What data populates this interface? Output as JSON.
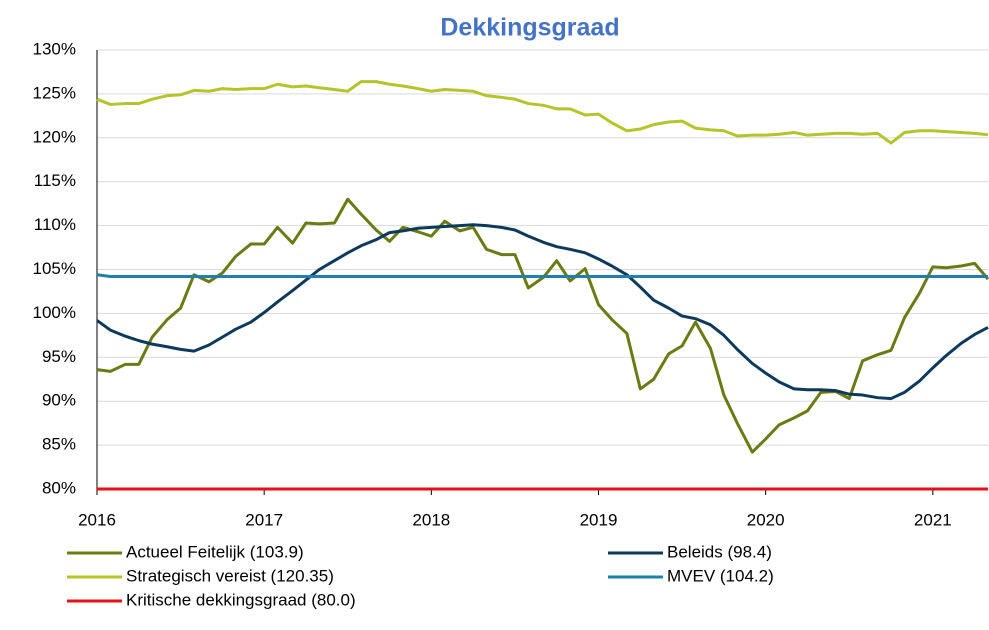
{
  "chart_data": {
    "type": "line",
    "title": "Dekkingsgraad",
    "x": [
      2016,
      2016.08,
      2016.17,
      2016.25,
      2016.33,
      2016.42,
      2016.5,
      2016.58,
      2016.67,
      2016.75,
      2016.83,
      2016.92,
      2017,
      2017.08,
      2017.17,
      2017.25,
      2017.33,
      2017.42,
      2017.5,
      2017.58,
      2017.67,
      2017.75,
      2017.83,
      2017.92,
      2018,
      2018.08,
      2018.17,
      2018.25,
      2018.33,
      2018.42,
      2018.5,
      2018.58,
      2018.67,
      2018.75,
      2018.83,
      2018.92,
      2019,
      2019.08,
      2019.17,
      2019.25,
      2019.33,
      2019.42,
      2019.5,
      2019.58,
      2019.67,
      2019.75,
      2019.83,
      2019.92,
      2020,
      2020.08,
      2020.17,
      2020.25,
      2020.33,
      2020.42,
      2020.5,
      2020.58,
      2020.67,
      2020.75,
      2020.83,
      2020.92,
      2021,
      2021.08,
      2021.17,
      2021.25,
      2021.33
    ],
    "series": [
      {
        "name": "Actueel Feitelijk (103.9)",
        "color": "#6b7a12",
        "values": [
          93.6,
          93.4,
          94.2,
          94.2,
          97.3,
          99.3,
          100.6,
          104.4,
          103.6,
          104.6,
          106.5,
          107.9,
          107.9,
          109.8,
          108.0,
          110.3,
          110.2,
          110.3,
          113.0,
          111.3,
          109.5,
          108.2,
          109.8,
          109.3,
          108.8,
          110.5,
          109.4,
          109.8,
          107.3,
          106.7,
          106.7,
          102.9,
          104.1,
          106.0,
          103.7,
          105.1,
          101.0,
          99.3,
          97.7,
          91.4,
          92.5,
          95.4,
          96.3,
          99.0,
          96.0,
          90.7,
          87.5,
          84.2,
          85.7,
          87.3,
          88.1,
          88.9,
          91.0,
          91.1,
          90.3,
          94.6,
          95.3,
          95.8,
          99.5,
          102.3,
          105.3,
          105.2,
          105.4,
          105.7,
          103.9
        ]
      },
      {
        "name": "Beleids (98.4)",
        "color": "#0d3a5c",
        "values": [
          99.2,
          98.1,
          97.4,
          96.9,
          96.5,
          96.2,
          95.9,
          95.7,
          96.4,
          97.3,
          98.2,
          99.0,
          100.1,
          101.3,
          102.6,
          103.8,
          105.0,
          106.0,
          106.9,
          107.7,
          108.4,
          109.2,
          109.4,
          109.7,
          109.8,
          109.9,
          110.0,
          110.1,
          110.0,
          109.8,
          109.5,
          108.8,
          108.1,
          107.6,
          107.3,
          106.9,
          106.2,
          105.4,
          104.4,
          103.0,
          101.5,
          100.6,
          99.7,
          99.4,
          98.7,
          97.5,
          95.9,
          94.3,
          93.2,
          92.2,
          91.4,
          91.3,
          91.3,
          91.2,
          90.8,
          90.7,
          90.4,
          90.3,
          91.0,
          92.3,
          93.8,
          95.2,
          96.6,
          97.6,
          98.4
        ]
      },
      {
        "name": "Strategisch vereist (120.35)",
        "color": "#b5c42a",
        "values": [
          124.4,
          123.8,
          123.9,
          123.9,
          124.4,
          124.8,
          124.9,
          125.4,
          125.3,
          125.6,
          125.5,
          125.6,
          125.6,
          126.1,
          125.8,
          125.9,
          125.7,
          125.5,
          125.3,
          126.4,
          126.4,
          126.1,
          125.9,
          125.6,
          125.3,
          125.5,
          125.4,
          125.3,
          124.8,
          124.6,
          124.4,
          123.9,
          123.7,
          123.3,
          123.3,
          122.6,
          122.7,
          121.7,
          120.8,
          121.0,
          121.5,
          121.8,
          121.9,
          121.1,
          120.9,
          120.8,
          120.2,
          120.3,
          120.3,
          120.4,
          120.6,
          120.3,
          120.4,
          120.5,
          120.5,
          120.4,
          120.5,
          119.4,
          120.6,
          120.8,
          120.8,
          120.7,
          120.6,
          120.5,
          120.35
        ]
      },
      {
        "name": "MVEV (104.2)",
        "color": "#1f7fae",
        "values": [
          104.4,
          104.2,
          104.2,
          104.2,
          104.2,
          104.2,
          104.2,
          104.2,
          104.2,
          104.2,
          104.2,
          104.2,
          104.2,
          104.2,
          104.2,
          104.2,
          104.2,
          104.2,
          104.2,
          104.2,
          104.2,
          104.2,
          104.2,
          104.2,
          104.2,
          104.2,
          104.2,
          104.2,
          104.2,
          104.2,
          104.2,
          104.2,
          104.2,
          104.2,
          104.2,
          104.2,
          104.2,
          104.2,
          104.2,
          104.2,
          104.2,
          104.2,
          104.2,
          104.2,
          104.2,
          104.2,
          104.2,
          104.2,
          104.2,
          104.2,
          104.2,
          104.2,
          104.2,
          104.2,
          104.2,
          104.2,
          104.2,
          104.2,
          104.2,
          104.2,
          104.2,
          104.2,
          104.2,
          104.2,
          104.2
        ]
      },
      {
        "name": "Kritische dekkingsgraad (80.0)",
        "color": "#e81010",
        "values": [
          80,
          80,
          80,
          80,
          80,
          80,
          80,
          80,
          80,
          80,
          80,
          80,
          80,
          80,
          80,
          80,
          80,
          80,
          80,
          80,
          80,
          80,
          80,
          80,
          80,
          80,
          80,
          80,
          80,
          80,
          80,
          80,
          80,
          80,
          80,
          80,
          80,
          80,
          80,
          80,
          80,
          80,
          80,
          80,
          80,
          80,
          80,
          80,
          80,
          80,
          80,
          80,
          80,
          80,
          80,
          80,
          80,
          80,
          80,
          80,
          80,
          80,
          80,
          80,
          80
        ]
      }
    ],
    "xlim": [
      2016,
      2021.33
    ],
    "xticks": [
      2016,
      2017,
      2018,
      2019,
      2020,
      2021
    ],
    "ylim": [
      80,
      130
    ],
    "yticks": [
      {
        "value": 80,
        "label": "80%"
      },
      {
        "value": 85,
        "label": "85%"
      },
      {
        "value": 90,
        "label": "90%"
      },
      {
        "value": 95,
        "label": "95%"
      },
      {
        "value": 100,
        "label": "100%"
      },
      {
        "value": 105,
        "label": "105%"
      },
      {
        "value": 110,
        "label": "110%"
      },
      {
        "value": 115,
        "label": "115%"
      },
      {
        "value": 120,
        "label": "120%"
      },
      {
        "value": 125,
        "label": "125%"
      },
      {
        "value": 130,
        "label": "130%"
      }
    ],
    "grid": true
  }
}
